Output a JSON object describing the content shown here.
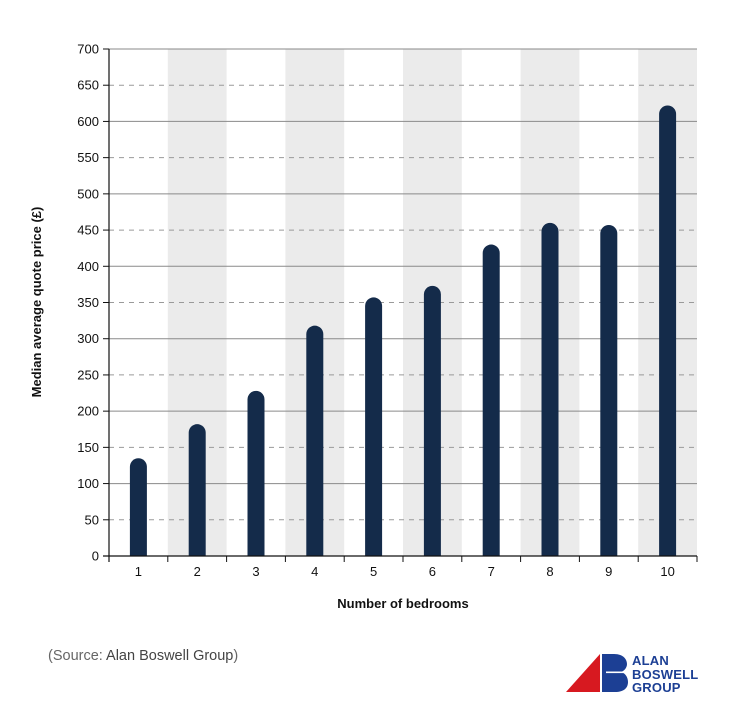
{
  "chart_data": {
    "type": "bar",
    "categories": [
      "1",
      "2",
      "3",
      "4",
      "5",
      "6",
      "7",
      "8",
      "9",
      "10"
    ],
    "values": [
      135,
      182,
      228,
      318,
      357,
      373,
      430,
      460,
      457,
      622
    ],
    "xlabel": "Number of bedrooms",
    "ylabel": "Median average quote price (£)",
    "ylim": [
      0,
      700
    ],
    "yticks": [
      0,
      50,
      100,
      150,
      200,
      250,
      300,
      350,
      400,
      450,
      500,
      550,
      600,
      650,
      700
    ],
    "bar_color": "#142b4a",
    "band_color": "#ebebeb",
    "grid": true
  },
  "source": {
    "prefix": "(Source: ",
    "name": "Alan Boswell Group",
    "suffix": ")"
  },
  "logo": {
    "line1": "ALAN",
    "line2": "BOSWELL",
    "line3": "GROUP",
    "red": "#d71920",
    "blue": "#1c3f94"
  }
}
